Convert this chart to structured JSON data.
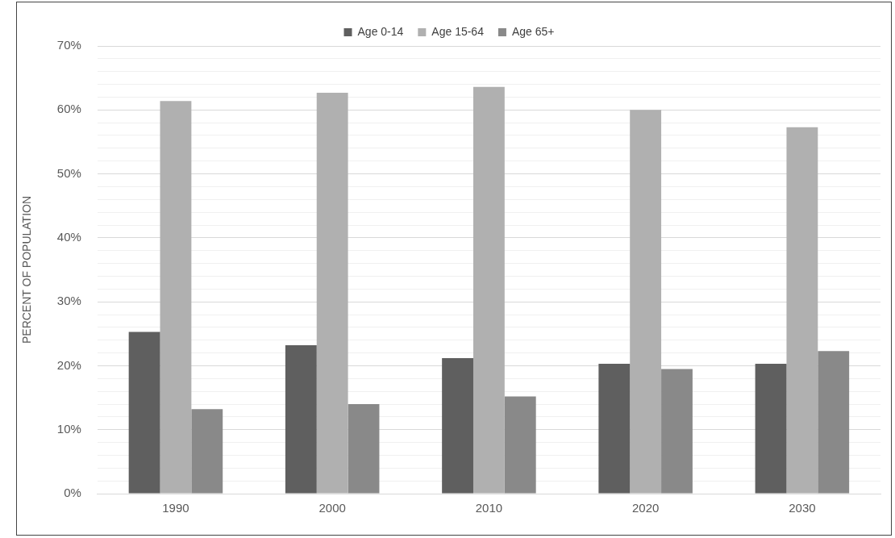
{
  "chart_data": {
    "type": "bar",
    "ylabel": "PERCENT OF POPULATION",
    "categories": [
      "1990",
      "2000",
      "2010",
      "2020",
      "2030"
    ],
    "series": [
      {
        "name": "Age 0-14",
        "color": "#5f5f5f",
        "values": [
          25.3,
          23.2,
          21.2,
          20.3,
          20.3
        ]
      },
      {
        "name": "Age 15-64",
        "color": "#b0b0b0",
        "values": [
          61.4,
          62.7,
          63.6,
          60.0,
          57.3
        ]
      },
      {
        "name": "Age 65+",
        "color": "#898989",
        "values": [
          13.2,
          14.0,
          15.2,
          19.5,
          22.3
        ]
      }
    ],
    "ylim": [
      0,
      70
    ],
    "yticks": [
      {
        "value": 0,
        "label": "0%"
      },
      {
        "value": 2,
        "label": null
      },
      {
        "value": 4,
        "label": null
      },
      {
        "value": 6,
        "label": null
      },
      {
        "value": 8,
        "label": null
      },
      {
        "value": 10,
        "label": "10%"
      },
      {
        "value": 12,
        "label": null
      },
      {
        "value": 14,
        "label": null
      },
      {
        "value": 16,
        "label": null
      },
      {
        "value": 18,
        "label": null
      },
      {
        "value": 20,
        "label": "20%"
      },
      {
        "value": 22,
        "label": null
      },
      {
        "value": 24,
        "label": null
      },
      {
        "value": 26,
        "label": null
      },
      {
        "value": 28,
        "label": null
      },
      {
        "value": 30,
        "label": "30%"
      },
      {
        "value": 32,
        "label": null
      },
      {
        "value": 34,
        "label": null
      },
      {
        "value": 36,
        "label": null
      },
      {
        "value": 38,
        "label": null
      },
      {
        "value": 40,
        "label": "40%"
      },
      {
        "value": 42,
        "label": null
      },
      {
        "value": 44,
        "label": null
      },
      {
        "value": 46,
        "label": null
      },
      {
        "value": 48,
        "label": null
      },
      {
        "value": 50,
        "label": "50%"
      },
      {
        "value": 52,
        "label": null
      },
      {
        "value": 54,
        "label": null
      },
      {
        "value": 56,
        "label": null
      },
      {
        "value": 58,
        "label": null
      },
      {
        "value": 60,
        "label": "60%"
      },
      {
        "value": 62,
        "label": null
      },
      {
        "value": 64,
        "label": null
      },
      {
        "value": 66,
        "label": null
      },
      {
        "value": 68,
        "label": null
      },
      {
        "value": 70,
        "label": "70%"
      }
    ],
    "grid": "y",
    "legend": "top"
  }
}
